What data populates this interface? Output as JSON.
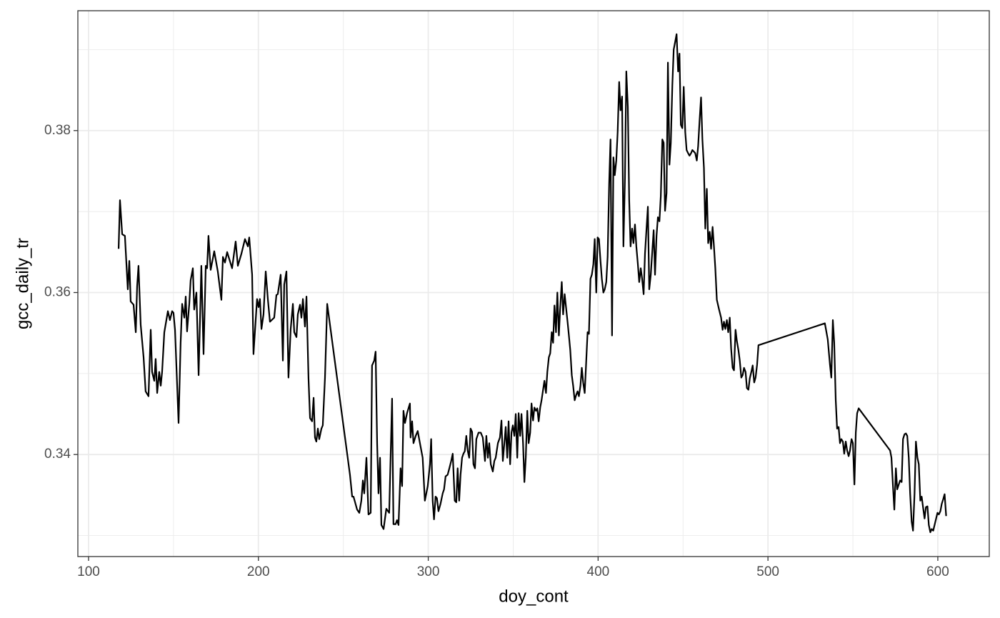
{
  "chart_data": {
    "type": "line",
    "x_label": "doy_cont",
    "y_label": "gcc_daily_tr",
    "color": "#000000",
    "grid": true,
    "xlim": [
      93.7,
      630.3
    ],
    "ylim": [
      0.3274,
      0.3948
    ],
    "xticks": [
      100,
      200,
      300,
      400,
      500,
      600
    ],
    "yticks": [
      0.34,
      0.36,
      0.38
    ],
    "xminor": [
      150,
      250,
      350,
      450,
      550
    ],
    "yminor": [
      0.33,
      0.35,
      0.37,
      0.39
    ],
    "x": [
      117.7,
      118.5,
      119.8,
      121.4,
      123.1,
      124.0,
      124.8,
      126.5,
      127.8,
      128.6,
      129.4,
      130.7,
      132.4,
      133.6,
      135.3,
      136.6,
      137.4,
      138.7,
      139.5,
      140.4,
      141.6,
      142.5,
      143.3,
      144.6,
      146.7,
      147.9,
      149.2,
      150.0,
      150.9,
      153.0,
      154.2,
      155.1,
      156.4,
      157.2,
      158.0,
      159.3,
      160.1,
      161.4,
      162.2,
      163.5,
      164.8,
      166.4,
      167.7,
      169.0,
      169.8,
      170.6,
      171.9,
      174.0,
      176.1,
      178.2,
      179.1,
      180.3,
      181.6,
      184.5,
      186.6,
      187.9,
      190.0,
      192.1,
      193.8,
      194.6,
      196.3,
      197.1,
      199.2,
      200.1,
      200.9,
      201.8,
      203.0,
      204.3,
      205.6,
      206.8,
      209.3,
      210.6,
      211.4,
      213.1,
      214.4,
      215.2,
      216.5,
      217.7,
      219.0,
      220.3,
      221.1,
      222.4,
      223.2,
      224.5,
      225.3,
      226.2,
      227.4,
      228.3,
      229.5,
      230.4,
      231.6,
      232.5,
      233.3,
      234.1,
      235.0,
      235.8,
      237.1,
      237.9,
      239.2,
      240.5,
      253.9,
      255.2,
      256.0,
      258.1,
      259.4,
      260.6,
      261.5,
      262.3,
      263.6,
      264.8,
      266.1,
      266.9,
      268.2,
      269.0,
      269.9,
      270.7,
      271.6,
      272.4,
      273.7,
      275.3,
      277.0,
      278.7,
      279.5,
      280.8,
      281.6,
      282.5,
      283.7,
      284.6,
      285.4,
      286.3,
      287.5,
      289.2,
      289.6,
      290.5,
      291.3,
      292.6,
      293.8,
      295.1,
      296.7,
      298.0,
      299.7,
      301.0,
      301.7,
      302.6,
      303.4,
      304.3,
      305.1,
      306.0,
      307.2,
      308.5,
      309.3,
      310.2,
      311.4,
      312.3,
      313.5,
      314.4,
      315.6,
      316.5,
      317.3,
      318.2,
      319.0,
      319.9,
      320.7,
      321.5,
      322.4,
      323.2,
      324.1,
      324.9,
      325.8,
      326.6,
      327.5,
      328.3,
      329.6,
      330.9,
      332.1,
      333.4,
      334.2,
      335.1,
      335.9,
      336.8,
      338.0,
      338.9,
      339.7,
      341.0,
      342.2,
      343.1,
      343.9,
      344.8,
      345.6,
      346.5,
      347.3,
      348.2,
      349.0,
      349.8,
      350.7,
      351.5,
      352.4,
      353.2,
      354.1,
      354.9,
      355.8,
      356.6,
      357.4,
      358.3,
      359.1,
      360.0,
      360.8,
      361.7,
      362.5,
      363.4,
      364.2,
      365.0,
      365.9,
      366.7,
      367.6,
      368.4,
      369.3,
      370.1,
      371.0,
      371.8,
      372.7,
      373.5,
      374.3,
      375.2,
      376.0,
      376.9,
      377.7,
      378.6,
      379.4,
      380.3,
      381.1,
      382.0,
      382.8,
      383.6,
      384.5,
      385.3,
      386.2,
      387.0,
      387.9,
      388.7,
      389.6,
      390.4,
      391.2,
      392.1,
      392.9,
      393.8,
      394.6,
      395.5,
      396.3,
      397.2,
      398.0,
      398.9,
      399.7,
      400.5,
      401.4,
      402.2,
      403.1,
      403.9,
      404.8,
      405.6,
      406.5,
      407.3,
      408.2,
      409.0,
      409.8,
      410.7,
      411.5,
      412.4,
      413.2,
      414.1,
      414.9,
      415.8,
      416.6,
      417.5,
      418.3,
      419.1,
      420.0,
      420.8,
      421.7,
      422.5,
      423.4,
      424.2,
      425.1,
      425.9,
      426.8,
      427.6,
      428.5,
      429.3,
      430.1,
      431.0,
      431.8,
      432.7,
      433.5,
      434.4,
      435.2,
      436.1,
      436.9,
      437.8,
      438.6,
      439.4,
      440.3,
      441.1,
      442.0,
      442.8,
      443.7,
      444.5,
      445.4,
      446.2,
      447.1,
      447.9,
      448.7,
      449.6,
      450.4,
      451.3,
      452.1,
      453.0,
      453.8,
      454.7,
      455.5,
      456.4,
      457.2,
      458.1,
      458.9,
      459.7,
      460.6,
      461.4,
      462.3,
      463.1,
      464.0,
      464.8,
      465.7,
      466.5,
      467.4,
      468.2,
      469.0,
      469.9,
      471.1,
      472.4,
      473.3,
      474.1,
      474.9,
      475.8,
      476.6,
      477.5,
      478.3,
      479.2,
      480.0,
      480.9,
      481.7,
      482.6,
      483.4,
      484.3,
      485.1,
      485.9,
      486.8,
      487.6,
      488.5,
      489.3,
      490.2,
      491.0,
      491.9,
      492.7,
      493.6,
      494.4,
      533.5,
      535.2,
      536.5,
      537.3,
      538.2,
      539.0,
      539.9,
      540.7,
      541.6,
      542.4,
      543.2,
      544.1,
      544.9,
      545.8,
      546.6,
      547.5,
      548.3,
      549.2,
      550.0,
      550.9,
      551.7,
      552.5,
      553.4,
      571.9,
      572.7,
      573.6,
      574.4,
      575.3,
      576.1,
      577.0,
      577.8,
      578.7,
      579.5,
      580.4,
      581.2,
      582.0,
      582.9,
      583.7,
      584.6,
      585.4,
      586.3,
      587.1,
      588.0,
      588.8,
      589.7,
      590.5,
      591.3,
      592.2,
      593.0,
      593.9,
      594.7,
      595.6,
      596.4,
      597.3,
      598.1,
      599.0,
      599.8,
      600.6,
      601.5,
      602.3,
      603.2,
      604.0,
      604.9
    ],
    "values": [
      0.3654,
      0.3714,
      0.3672,
      0.367,
      0.3604,
      0.3639,
      0.3589,
      0.3585,
      0.3551,
      0.3608,
      0.3633,
      0.356,
      0.352,
      0.3478,
      0.3472,
      0.3554,
      0.3502,
      0.3491,
      0.3518,
      0.3476,
      0.3502,
      0.3485,
      0.3502,
      0.3551,
      0.3577,
      0.3566,
      0.3577,
      0.3575,
      0.3554,
      0.3439,
      0.3538,
      0.3586,
      0.3569,
      0.3595,
      0.3552,
      0.3586,
      0.3615,
      0.363,
      0.3579,
      0.36,
      0.3498,
      0.3633,
      0.3524,
      0.3633,
      0.363,
      0.367,
      0.3628,
      0.3651,
      0.3626,
      0.3591,
      0.3644,
      0.3637,
      0.365,
      0.363,
      0.3663,
      0.3633,
      0.3648,
      0.3666,
      0.3657,
      0.3668,
      0.3622,
      0.3524,
      0.3592,
      0.3582,
      0.3592,
      0.3555,
      0.3573,
      0.3626,
      0.3591,
      0.3564,
      0.3569,
      0.3597,
      0.3598,
      0.3622,
      0.3516,
      0.361,
      0.3626,
      0.3495,
      0.3555,
      0.3586,
      0.3551,
      0.3545,
      0.3573,
      0.3585,
      0.3569,
      0.3592,
      0.3558,
      0.3595,
      0.3494,
      0.3445,
      0.3441,
      0.347,
      0.3421,
      0.3416,
      0.3432,
      0.3419,
      0.3432,
      0.3436,
      0.3495,
      0.3586,
      0.3375,
      0.3348,
      0.3348,
      0.3332,
      0.3328,
      0.3343,
      0.3368,
      0.3352,
      0.3396,
      0.3326,
      0.3328,
      0.351,
      0.3516,
      0.3527,
      0.3414,
      0.3352,
      0.3396,
      0.3313,
      0.3308,
      0.3333,
      0.3328,
      0.3469,
      0.3314,
      0.3314,
      0.3319,
      0.3313,
      0.3383,
      0.3361,
      0.3454,
      0.3439,
      0.3451,
      0.3463,
      0.3421,
      0.3441,
      0.3414,
      0.3423,
      0.3429,
      0.3414,
      0.3396,
      0.3343,
      0.3361,
      0.3388,
      0.3419,
      0.3343,
      0.332,
      0.3348,
      0.3346,
      0.333,
      0.3339,
      0.3352,
      0.3357,
      0.3373,
      0.3375,
      0.3382,
      0.3392,
      0.3401,
      0.3343,
      0.3341,
      0.3383,
      0.3343,
      0.3375,
      0.3396,
      0.3401,
      0.3404,
      0.3423,
      0.3405,
      0.3396,
      0.3432,
      0.3428,
      0.3388,
      0.3383,
      0.3419,
      0.3427,
      0.3427,
      0.3421,
      0.3392,
      0.3423,
      0.3396,
      0.3414,
      0.3388,
      0.3379,
      0.3392,
      0.3396,
      0.3414,
      0.3421,
      0.3442,
      0.3392,
      0.3414,
      0.3434,
      0.3396,
      0.3441,
      0.3388,
      0.3427,
      0.3436,
      0.3423,
      0.345,
      0.3396,
      0.3451,
      0.3423,
      0.345,
      0.3414,
      0.3366,
      0.3396,
      0.3454,
      0.3414,
      0.3427,
      0.3463,
      0.3442,
      0.3458,
      0.3454,
      0.3457,
      0.3441,
      0.3458,
      0.3467,
      0.348,
      0.3491,
      0.3476,
      0.3502,
      0.352,
      0.3525,
      0.3551,
      0.3538,
      0.3584,
      0.3551,
      0.36,
      0.3547,
      0.3582,
      0.3613,
      0.3573,
      0.3598,
      0.3582,
      0.3564,
      0.3547,
      0.3529,
      0.3498,
      0.3485,
      0.3467,
      0.3473,
      0.3478,
      0.3472,
      0.3485,
      0.3507,
      0.3489,
      0.3476,
      0.3511,
      0.3551,
      0.3549,
      0.3617,
      0.3622,
      0.3635,
      0.3666,
      0.36,
      0.3668,
      0.3666,
      0.3639,
      0.3617,
      0.36,
      0.3604,
      0.3613,
      0.3644,
      0.3734,
      0.3789,
      0.3547,
      0.3767,
      0.3745,
      0.3763,
      0.3798,
      0.386,
      0.3825,
      0.3842,
      0.3657,
      0.3741,
      0.3873,
      0.3829,
      0.3714,
      0.3657,
      0.3679,
      0.3661,
      0.3684,
      0.3657,
      0.3635,
      0.3613,
      0.363,
      0.3617,
      0.3598,
      0.3648,
      0.3679,
      0.3706,
      0.3604,
      0.3622,
      0.3648,
      0.3677,
      0.3622,
      0.367,
      0.3693,
      0.3688,
      0.3719,
      0.3789,
      0.3785,
      0.3701,
      0.3723,
      0.3884,
      0.3758,
      0.3785,
      0.3856,
      0.39,
      0.391,
      0.3919,
      0.3873,
      0.3895,
      0.3807,
      0.3803,
      0.3854,
      0.3798,
      0.3776,
      0.3772,
      0.3769,
      0.3772,
      0.3776,
      0.3774,
      0.3772,
      0.3763,
      0.3781,
      0.3811,
      0.3841,
      0.3789,
      0.3754,
      0.3679,
      0.3728,
      0.3661,
      0.3675,
      0.3654,
      0.3681,
      0.3657,
      0.363,
      0.3591,
      0.358,
      0.3569,
      0.3554,
      0.3564,
      0.3555,
      0.3566,
      0.3551,
      0.3569,
      0.3531,
      0.3507,
      0.3504,
      0.3554,
      0.354,
      0.3529,
      0.3516,
      0.3495,
      0.3498,
      0.3507,
      0.3502,
      0.3482,
      0.348,
      0.3494,
      0.3502,
      0.351,
      0.3489,
      0.3495,
      0.3511,
      0.3535,
      0.3562,
      0.3542,
      0.3511,
      0.3495,
      0.3566,
      0.3538,
      0.3467,
      0.3432,
      0.3434,
      0.3414,
      0.3419,
      0.3416,
      0.3401,
      0.3416,
      0.3405,
      0.3398,
      0.3405,
      0.3419,
      0.3414,
      0.3363,
      0.3427,
      0.3451,
      0.3457,
      0.3405,
      0.3396,
      0.3361,
      0.3332,
      0.3383,
      0.3357,
      0.3363,
      0.3368,
      0.3366,
      0.3419,
      0.3425,
      0.3426,
      0.3423,
      0.3396,
      0.3352,
      0.3317,
      0.3306,
      0.3352,
      0.3416,
      0.3396,
      0.3388,
      0.3343,
      0.3348,
      0.3335,
      0.3321,
      0.3335,
      0.3336,
      0.3313,
      0.3304,
      0.3308,
      0.3306,
      0.3313,
      0.3321,
      0.3328,
      0.3326,
      0.333,
      0.3339,
      0.3345,
      0.3351,
      0.3324
    ]
  }
}
